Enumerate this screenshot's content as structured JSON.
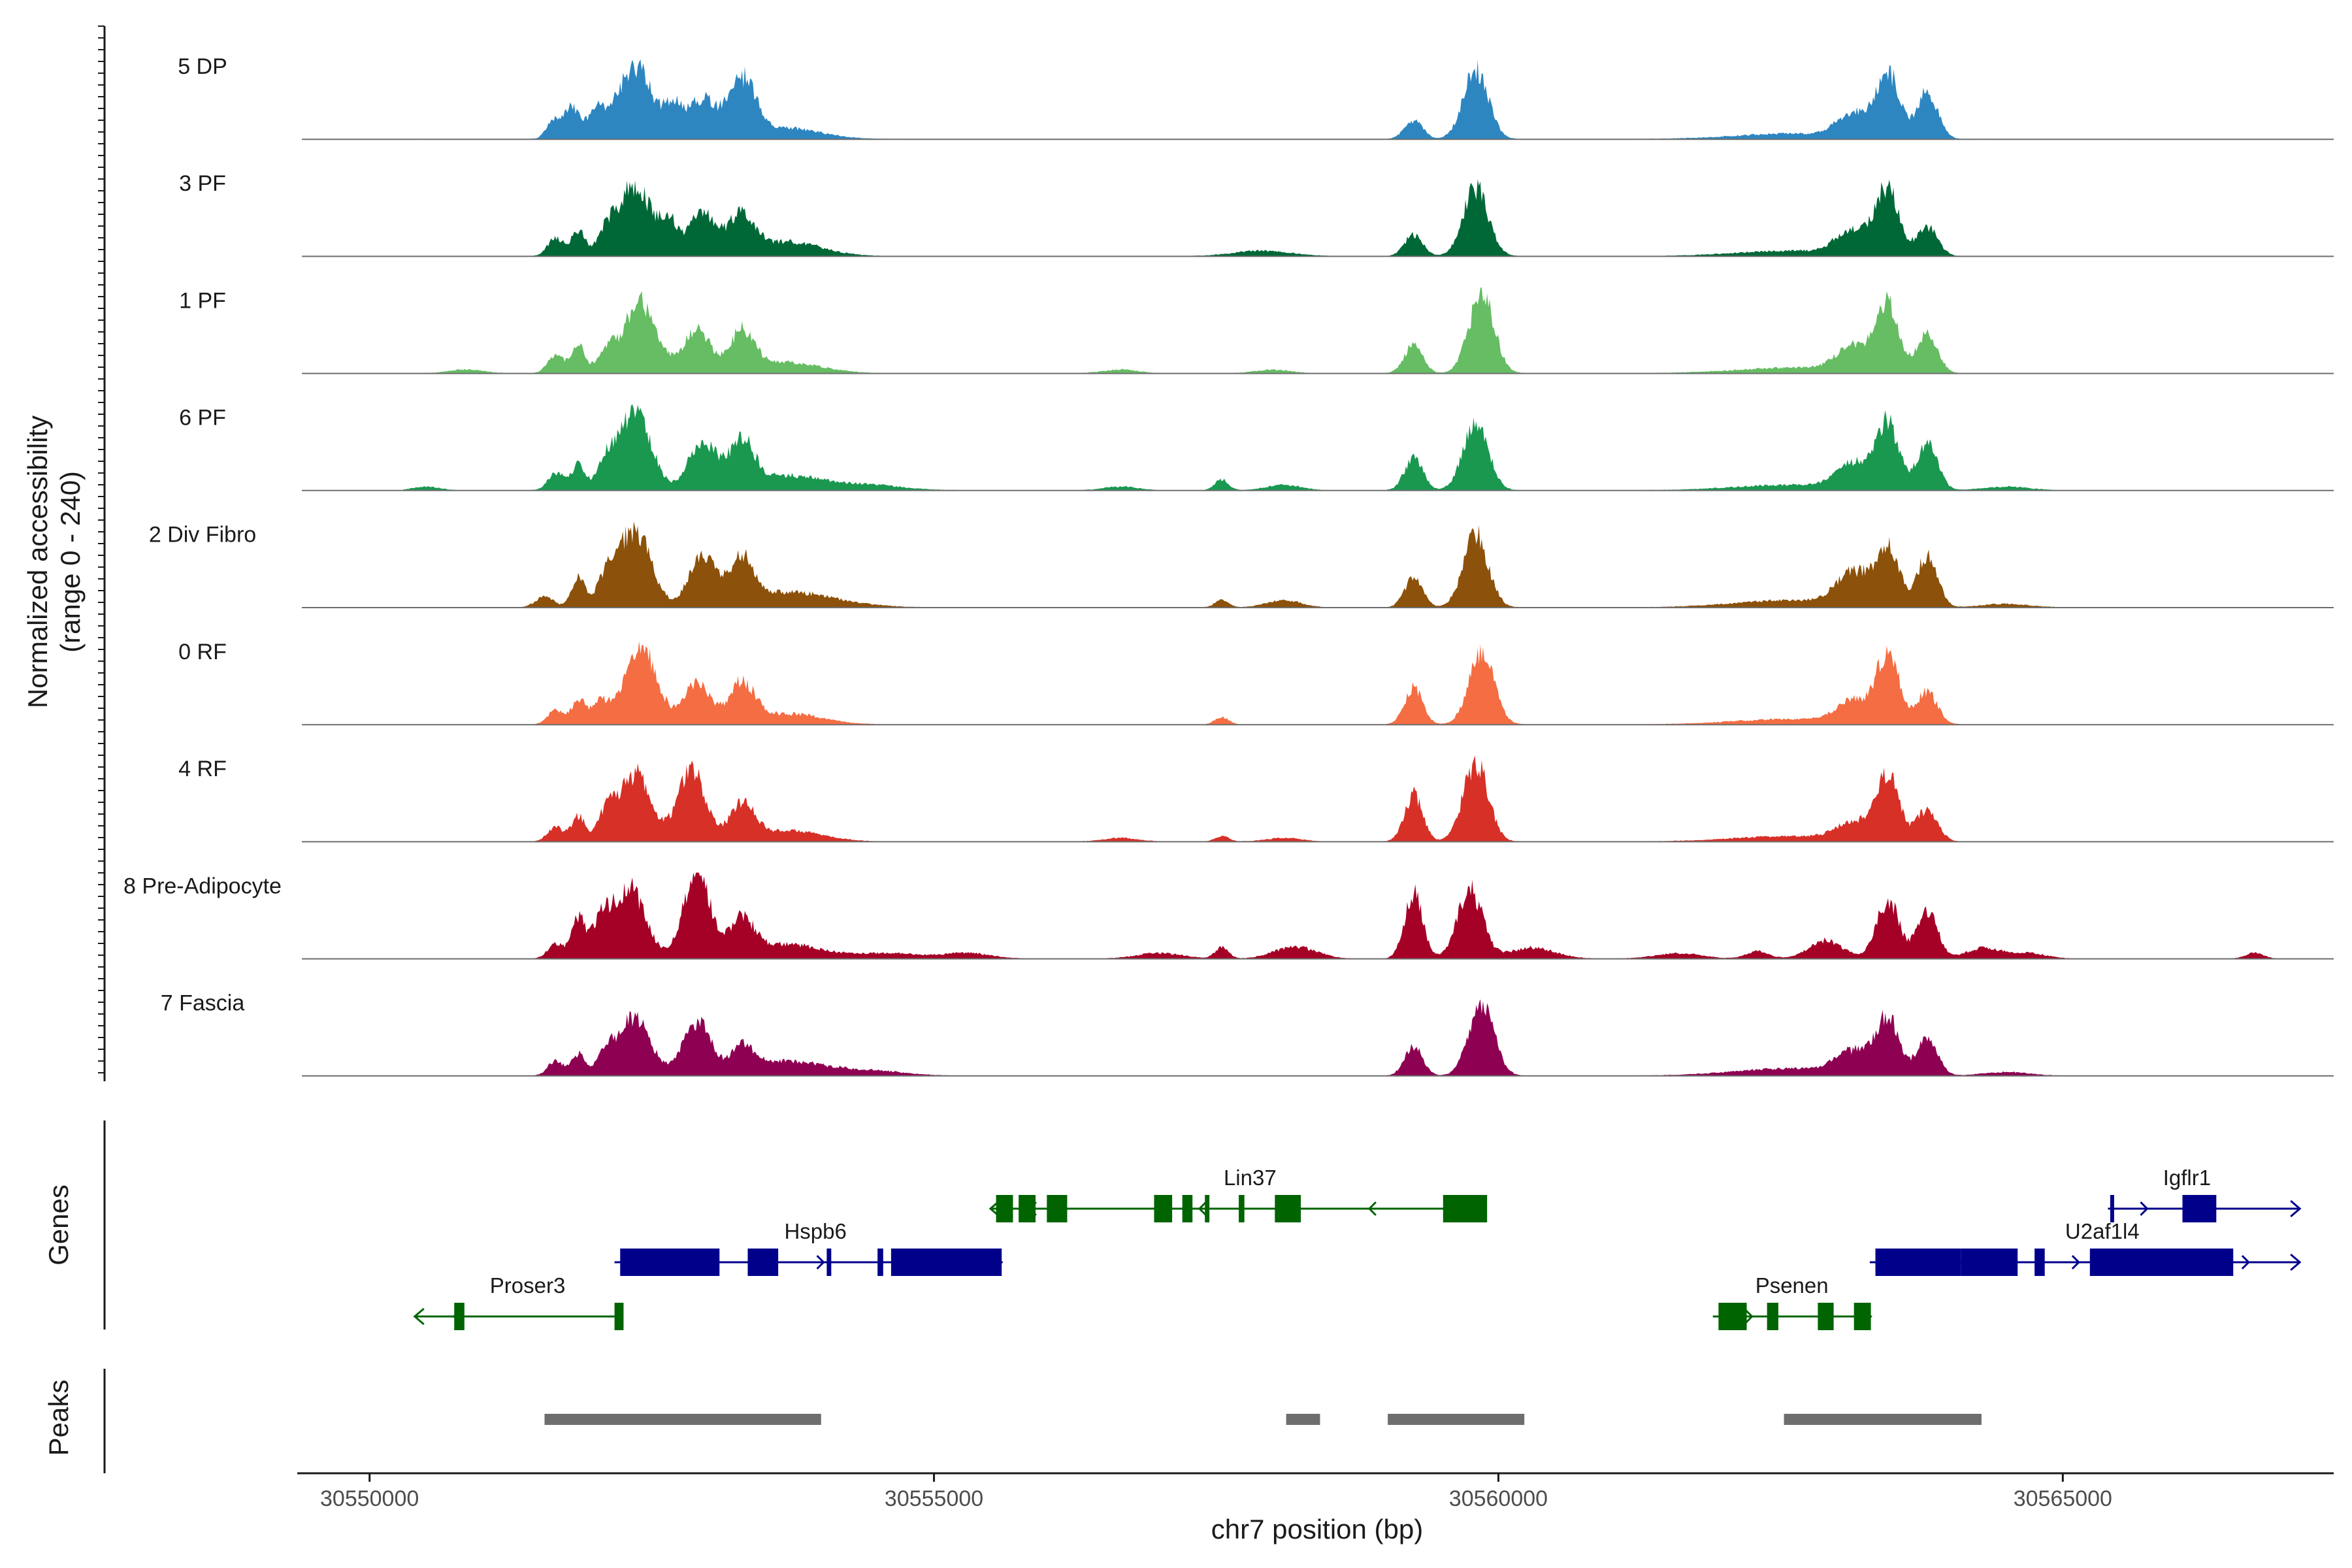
{
  "chart_data": {
    "type": "area",
    "title": "",
    "xlabel": "chr7 position (bp)",
    "ylabel_line1": "Normalized accessibility",
    "ylabel_line2": "(range 0 - 240)",
    "ylim": [
      0,
      240
    ],
    "xlim": [
      30549400,
      30567400
    ],
    "xticks": [
      30550000,
      30555000,
      30560000,
      30565000
    ],
    "xtick_labels": [
      "30550000",
      "30555000",
      "30560000",
      "30565000"
    ],
    "genes_label": "Genes",
    "peaks_label": "Peaks",
    "tracks": [
      {
        "name": "5 DP",
        "color": "#2E86C1",
        "peaks": [
          [
            30551650,
            60,
            70
          ],
          [
            30551800,
            80,
            60
          ],
          [
            30552000,
            70,
            80
          ],
          [
            30552350,
            200,
            160
          ],
          [
            30552700,
            80,
            80
          ],
          [
            30552950,
            110,
            120
          ],
          [
            30553300,
            160,
            120
          ],
          [
            30553700,
            30,
            300
          ],
          [
            30559250,
            50,
            80
          ],
          [
            30559800,
            190,
            110
          ],
          [
            30563150,
            70,
            140
          ],
          [
            30563450,
            180,
            100
          ],
          [
            30563800,
            130,
            90
          ],
          [
            30562600,
            15,
            500
          ]
        ]
      },
      {
        "name": "3 PF",
        "color": "#006837",
        "peaks": [
          [
            30551650,
            50,
            70
          ],
          [
            30551850,
            70,
            60
          ],
          [
            30552100,
            60,
            80
          ],
          [
            30552350,
            200,
            140
          ],
          [
            30552650,
            90,
            80
          ],
          [
            30552950,
            120,
            120
          ],
          [
            30553300,
            110,
            110
          ],
          [
            30553700,
            40,
            300
          ],
          [
            30557900,
            15,
            250
          ],
          [
            30559250,
            60,
            80
          ],
          [
            30559800,
            190,
            110
          ],
          [
            30563150,
            70,
            150
          ],
          [
            30563450,
            180,
            100
          ],
          [
            30563800,
            80,
            90
          ],
          [
            30562600,
            15,
            500
          ]
        ]
      },
      {
        "name": "1 PF",
        "color": "#66BD63",
        "peaks": [
          [
            30551650,
            50,
            70
          ],
          [
            30551850,
            80,
            60
          ],
          [
            30552100,
            60,
            80
          ],
          [
            30552400,
            200,
            140
          ],
          [
            30552900,
            120,
            120
          ],
          [
            30553300,
            110,
            110
          ],
          [
            30553700,
            30,
            300
          ],
          [
            30550850,
            10,
            150
          ],
          [
            30556650,
            10,
            150
          ],
          [
            30558000,
            10,
            150
          ],
          [
            30559250,
            80,
            80
          ],
          [
            30559850,
            220,
            110
          ],
          [
            30563150,
            70,
            150
          ],
          [
            30563450,
            180,
            100
          ],
          [
            30563800,
            110,
            90
          ],
          [
            30562600,
            15,
            500
          ]
        ]
      },
      {
        "name": "6 PF",
        "color": "#1A9850",
        "peaks": [
          [
            30550500,
            10,
            120
          ],
          [
            30551650,
            50,
            70
          ],
          [
            30551850,
            70,
            60
          ],
          [
            30552100,
            70,
            80
          ],
          [
            30552350,
            220,
            140
          ],
          [
            30552950,
            140,
            120
          ],
          [
            30553300,
            130,
            110
          ],
          [
            30553700,
            40,
            300
          ],
          [
            30554400,
            15,
            300
          ],
          [
            30556650,
            10,
            150
          ],
          [
            30557550,
            30,
            60
          ],
          [
            30558100,
            15,
            150
          ],
          [
            30559250,
            90,
            80
          ],
          [
            30559800,
            190,
            110
          ],
          [
            30563150,
            70,
            150
          ],
          [
            30563450,
            180,
            100
          ],
          [
            30563800,
            130,
            90
          ],
          [
            30562600,
            15,
            500
          ],
          [
            30564500,
            10,
            200
          ]
        ]
      },
      {
        "name": "2 Div Fibro",
        "color": "#8C510A",
        "peaks": [
          [
            30551550,
            30,
            80
          ],
          [
            30551850,
            80,
            60
          ],
          [
            30552100,
            80,
            80
          ],
          [
            30552350,
            220,
            140
          ],
          [
            30552950,
            140,
            120
          ],
          [
            30553300,
            130,
            110
          ],
          [
            30553700,
            40,
            300
          ],
          [
            30554200,
            10,
            300
          ],
          [
            30557550,
            20,
            60
          ],
          [
            30558100,
            20,
            150
          ],
          [
            30559250,
            80,
            80
          ],
          [
            30559800,
            200,
            110
          ],
          [
            30563150,
            90,
            150
          ],
          [
            30563450,
            160,
            100
          ],
          [
            30563800,
            140,
            90
          ],
          [
            30562600,
            20,
            500
          ],
          [
            30564500,
            10,
            200
          ]
        ]
      },
      {
        "name": "0 RF",
        "color": "#F46D43",
        "peaks": [
          [
            30551650,
            40,
            70
          ],
          [
            30551850,
            70,
            60
          ],
          [
            30552050,
            60,
            80
          ],
          [
            30552400,
            220,
            140
          ],
          [
            30552900,
            120,
            120
          ],
          [
            30553300,
            110,
            110
          ],
          [
            30553700,
            30,
            300
          ],
          [
            30557550,
            20,
            60
          ],
          [
            30559250,
            100,
            80
          ],
          [
            30559850,
            200,
            110
          ],
          [
            30563150,
            60,
            150
          ],
          [
            30563450,
            190,
            100
          ],
          [
            30563800,
            90,
            90
          ],
          [
            30562600,
            15,
            500
          ]
        ]
      },
      {
        "name": "4 RF",
        "color": "#D73027",
        "peaks": [
          [
            30551650,
            40,
            70
          ],
          [
            30551850,
            70,
            60
          ],
          [
            30552100,
            70,
            80
          ],
          [
            30552350,
            190,
            140
          ],
          [
            30552850,
            200,
            120
          ],
          [
            30553300,
            100,
            110
          ],
          [
            30553700,
            30,
            300
          ],
          [
            30556650,
            10,
            150
          ],
          [
            30557550,
            15,
            60
          ],
          [
            30558100,
            10,
            150
          ],
          [
            30559250,
            130,
            80
          ],
          [
            30559800,
            220,
            110
          ],
          [
            30563150,
            50,
            150
          ],
          [
            30563450,
            180,
            100
          ],
          [
            30563800,
            90,
            90
          ],
          [
            30562600,
            15,
            500
          ]
        ]
      },
      {
        "name": "8 Pre-Adipocyte",
        "color": "#A50026",
        "peaks": [
          [
            30551650,
            40,
            70
          ],
          [
            30551850,
            110,
            60
          ],
          [
            30552050,
            90,
            80
          ],
          [
            30552300,
            200,
            140
          ],
          [
            30552900,
            240,
            120
          ],
          [
            30553300,
            100,
            110
          ],
          [
            30553700,
            40,
            300
          ],
          [
            30554600,
            15,
            300
          ],
          [
            30555300,
            15,
            200
          ],
          [
            30557000,
            15,
            200
          ],
          [
            30557550,
            30,
            60
          ],
          [
            30558100,
            20,
            150
          ],
          [
            30558300,
            20,
            150
          ],
          [
            30559250,
            180,
            80
          ],
          [
            30559750,
            190,
            110
          ],
          [
            30560300,
            30,
            200
          ],
          [
            30561600,
            15,
            200
          ],
          [
            30562300,
            20,
            100
          ],
          [
            30562900,
            50,
            150
          ],
          [
            30563450,
            160,
            100
          ],
          [
            30563800,
            130,
            90
          ],
          [
            30564300,
            30,
            150
          ],
          [
            30564700,
            15,
            150
          ],
          [
            30566700,
            15,
            80
          ]
        ]
      },
      {
        "name": "7 Fascia",
        "color": "#8E0152",
        "peaks": [
          [
            30551650,
            40,
            70
          ],
          [
            30551850,
            60,
            60
          ],
          [
            30552100,
            60,
            80
          ],
          [
            30552350,
            160,
            140
          ],
          [
            30552900,
            150,
            120
          ],
          [
            30553300,
            70,
            110
          ],
          [
            30553700,
            40,
            300
          ],
          [
            30554400,
            15,
            300
          ],
          [
            30559250,
            80,
            80
          ],
          [
            30559850,
            200,
            110
          ],
          [
            30563150,
            60,
            150
          ],
          [
            30563450,
            160,
            100
          ],
          [
            30563800,
            100,
            90
          ],
          [
            30562600,
            20,
            500
          ],
          [
            30564500,
            10,
            200
          ]
        ]
      }
    ],
    "genes": [
      {
        "name": "Proser3",
        "color": "#006400",
        "strand": "-",
        "row": 3,
        "start": 30550400,
        "end": 30552250,
        "exons": [
          [
            30550750,
            30550840
          ],
          [
            30552170,
            30552250
          ]
        ],
        "label_pos": 30551400
      },
      {
        "name": "Hspb6",
        "color": "#00008B",
        "strand": "+",
        "row": 2,
        "start": 30552170,
        "end": 30555600,
        "exons": [
          [
            30552220,
            30553100
          ],
          [
            30553350,
            30553620
          ],
          [
            30554050,
            30554090
          ],
          [
            30554500,
            30554550
          ],
          [
            30554620,
            30555600
          ]
        ],
        "label_pos": 30553950
      },
      {
        "name": "Lin37",
        "color": "#006400",
        "strand": "-",
        "row": 1,
        "start": 30555500,
        "end": 30559800,
        "exons": [
          [
            30555550,
            30555700
          ],
          [
            30555750,
            30555900
          ],
          [
            30556000,
            30556180
          ],
          [
            30556950,
            30557110
          ],
          [
            30557200,
            30557290
          ],
          [
            30557400,
            30557440
          ],
          [
            30557700,
            30557750
          ],
          [
            30558020,
            30558250
          ],
          [
            30559510,
            30559900
          ]
        ],
        "label_pos": 30557800
      },
      {
        "name": "Psenen",
        "color": "#006400",
        "strand": "+",
        "row": 3,
        "start": 30561900,
        "end": 30563300,
        "exons": [
          [
            30561950,
            30562200
          ],
          [
            30562380,
            30562480
          ],
          [
            30562830,
            30562970
          ],
          [
            30563150,
            30563300
          ]
        ],
        "label_pos": 30562600
      },
      {
        "name": "U2af1l4",
        "color": "#00008B",
        "strand": "+",
        "row": 2,
        "start": 30563290,
        "end": 30567100,
        "exons": [
          [
            30563340,
            30564100
          ],
          [
            30564100,
            30564600
          ],
          [
            30564750,
            30564840
          ],
          [
            30565240,
            30566510
          ]
        ],
        "label_pos": 30565350
      },
      {
        "name": "Igflr1",
        "color": "#00008B",
        "strand": "+",
        "row": 1,
        "start": 30565400,
        "end": 30567100,
        "exons": [
          [
            30565420,
            30565450
          ],
          [
            30566060,
            30566360
          ]
        ],
        "label_pos": 30566100
      }
    ],
    "peaks_regions": [
      [
        30551550,
        30554000
      ],
      [
        30558120,
        30558420
      ],
      [
        30559020,
        30560230
      ],
      [
        30562530,
        30564280
      ]
    ]
  }
}
